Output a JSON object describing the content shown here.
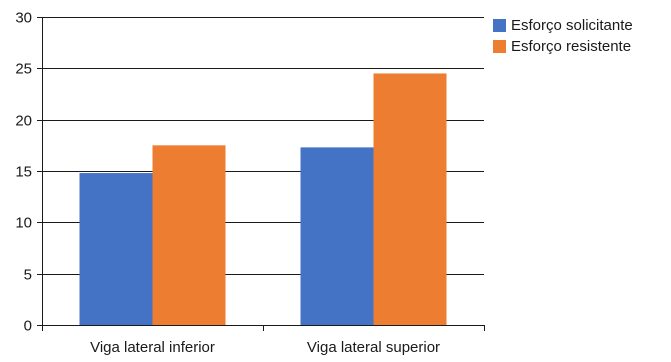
{
  "chart_data": {
    "type": "bar",
    "categories": [
      "Viga lateral inferior",
      "Viga lateral superior"
    ],
    "series": [
      {
        "name": "Esforço solicitante",
        "values": [
          14.8,
          17.3
        ],
        "color": "#4472C4"
      },
      {
        "name": "Esforço resistente",
        "values": [
          17.5,
          24.5
        ],
        "color": "#ED7D31"
      }
    ],
    "title": "",
    "xlabel": "",
    "ylabel": "",
    "ylim": [
      0,
      30
    ],
    "yticks": [
      "0",
      "5",
      "10",
      "15",
      "20",
      "25",
      "30"
    ],
    "grid": true,
    "legend_position": "right"
  }
}
